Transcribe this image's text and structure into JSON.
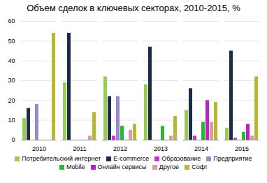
{
  "chart_data": {
    "type": "bar",
    "title": "Объем сделок в ключевых секторах, 2010-2015, %",
    "categories": [
      "2010",
      "2011",
      "2012",
      "2013",
      "2014",
      "2015"
    ],
    "series": [
      {
        "name": "Потребительский интернет",
        "color": "#99cc55",
        "values": [
          11,
          29,
          32,
          28,
          15,
          6
        ]
      },
      {
        "name": "E-commerce",
        "color": "#1c2b4a",
        "values": [
          16,
          54,
          22,
          47,
          26,
          45
        ]
      },
      {
        "name": "Образование",
        "color": "#cc33cc",
        "values": [
          0,
          0,
          2,
          0,
          2,
          1
        ]
      },
      {
        "name": "Предприятие",
        "color": "#9988cc",
        "values": [
          18,
          0,
          22,
          0,
          0,
          0
        ]
      },
      {
        "name": "Mobile",
        "color": "#22bb33",
        "values": [
          0,
          0,
          7,
          7,
          9,
          4
        ]
      },
      {
        "name": "Онлайн сервисы",
        "color": "#bb22bb",
        "values": [
          0,
          0,
          0,
          0,
          20,
          8
        ]
      },
      {
        "name": "Другое",
        "color": "#dd99aa",
        "values": [
          0,
          2,
          5,
          2,
          9,
          2
        ]
      },
      {
        "name": "Софт",
        "color": "#b8b830",
        "values": [
          54,
          14,
          8,
          12,
          19,
          32
        ]
      }
    ],
    "ylim": [
      0,
      60
    ],
    "yticks": [
      0,
      10,
      20,
      30,
      40,
      50,
      60
    ],
    "grid": true,
    "legend": "bottom"
  }
}
